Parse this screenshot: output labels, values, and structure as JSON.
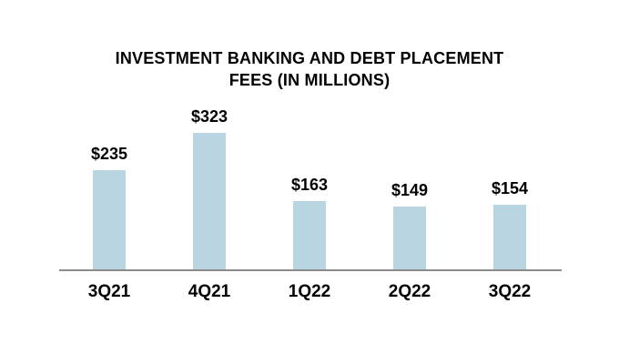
{
  "chart_data": {
    "type": "bar",
    "title": "INVESTMENT BANKING AND DEBT PLACEMENT FEES (IN MILLIONS)",
    "categories": [
      "3Q21",
      "4Q21",
      "1Q22",
      "2Q22",
      "3Q22"
    ],
    "values": [
      235,
      323,
      163,
      149,
      154
    ],
    "value_labels": [
      "$235",
      "$323",
      "$163",
      "$149",
      "$154"
    ],
    "xlabel": "",
    "ylabel": "",
    "ylim": [
      0,
      350
    ],
    "grid": false,
    "legend": "none",
    "bar_color": "#b9d5e2",
    "axis_line_color": "#8c8c8c",
    "text_color": "#000000",
    "background_color": "#ffffff"
  }
}
